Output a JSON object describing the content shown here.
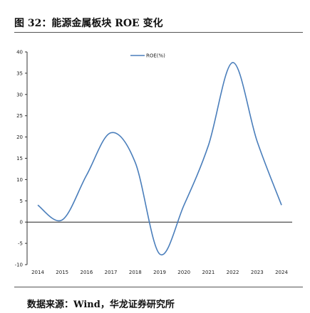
{
  "header": {
    "title": "图 32：能源金属板块 ROE 变化"
  },
  "footer": {
    "source": "数据来源：Wind，华龙证券研究所"
  },
  "chart_data": {
    "type": "line",
    "title": "",
    "xlabel": "",
    "ylabel": "",
    "x": [
      "2014",
      "2015",
      "2016",
      "2017",
      "2018",
      "2019",
      "2020",
      "2021",
      "2022",
      "2023",
      "2024"
    ],
    "series": [
      {
        "name": "ROE(%)",
        "color": "#4a7ebb",
        "values": [
          4,
          0.5,
          11,
          21,
          14,
          -7.5,
          4,
          18,
          37.5,
          19,
          4
        ]
      }
    ],
    "ylim": [
      -10,
      40
    ],
    "yticks": [
      -10,
      -5,
      0,
      5,
      10,
      15,
      20,
      25,
      30,
      35,
      40
    ],
    "grid": false,
    "legend": "top-center"
  }
}
